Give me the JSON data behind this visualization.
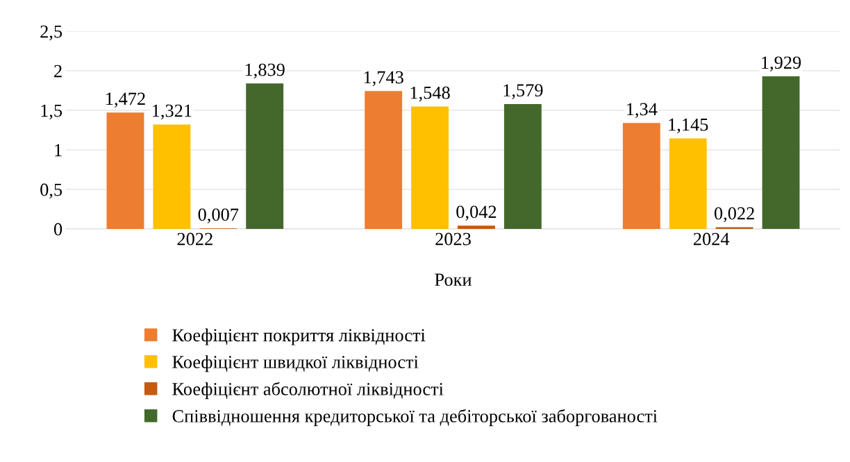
{
  "chart_data": {
    "type": "bar",
    "xlabel": "Роки",
    "categories": [
      "2022",
      "2023",
      "2024"
    ],
    "series": [
      {
        "name": "Коефіцієнт покриття ліквідності",
        "color": "#ed7d31",
        "values": [
          1.472,
          1.743,
          1.34
        ],
        "value_labels": [
          "1,472",
          "1,743",
          "1,34"
        ]
      },
      {
        "name": "Коефіцієнт швидкої ліквідності",
        "color": "#ffc000",
        "values": [
          1.321,
          1.548,
          1.145
        ],
        "value_labels": [
          "1,321",
          "1,548",
          "1,145"
        ]
      },
      {
        "name": "Коефіцієнт абсолютної ліквідності",
        "color": "#c55a11",
        "values": [
          0.007,
          0.042,
          0.022
        ],
        "value_labels": [
          "0,007",
          "0,042",
          "0,022"
        ]
      },
      {
        "name": "Співвідношення кредиторської та дебіторської заборгованості",
        "color": "#43682b",
        "values": [
          1.839,
          1.579,
          1.929
        ],
        "value_labels": [
          "1,839",
          "1,579",
          "1,929"
        ]
      }
    ],
    "ylim": [
      0,
      2.5
    ],
    "yticks": [
      0,
      {
        "value": 0.5,
        "label": "0,5"
      },
      1,
      {
        "value": 1.5,
        "label": "1,5"
      },
      2,
      {
        "value": 2.5,
        "label": "2,5"
      }
    ],
    "grid": "y",
    "legend": "bottom"
  }
}
